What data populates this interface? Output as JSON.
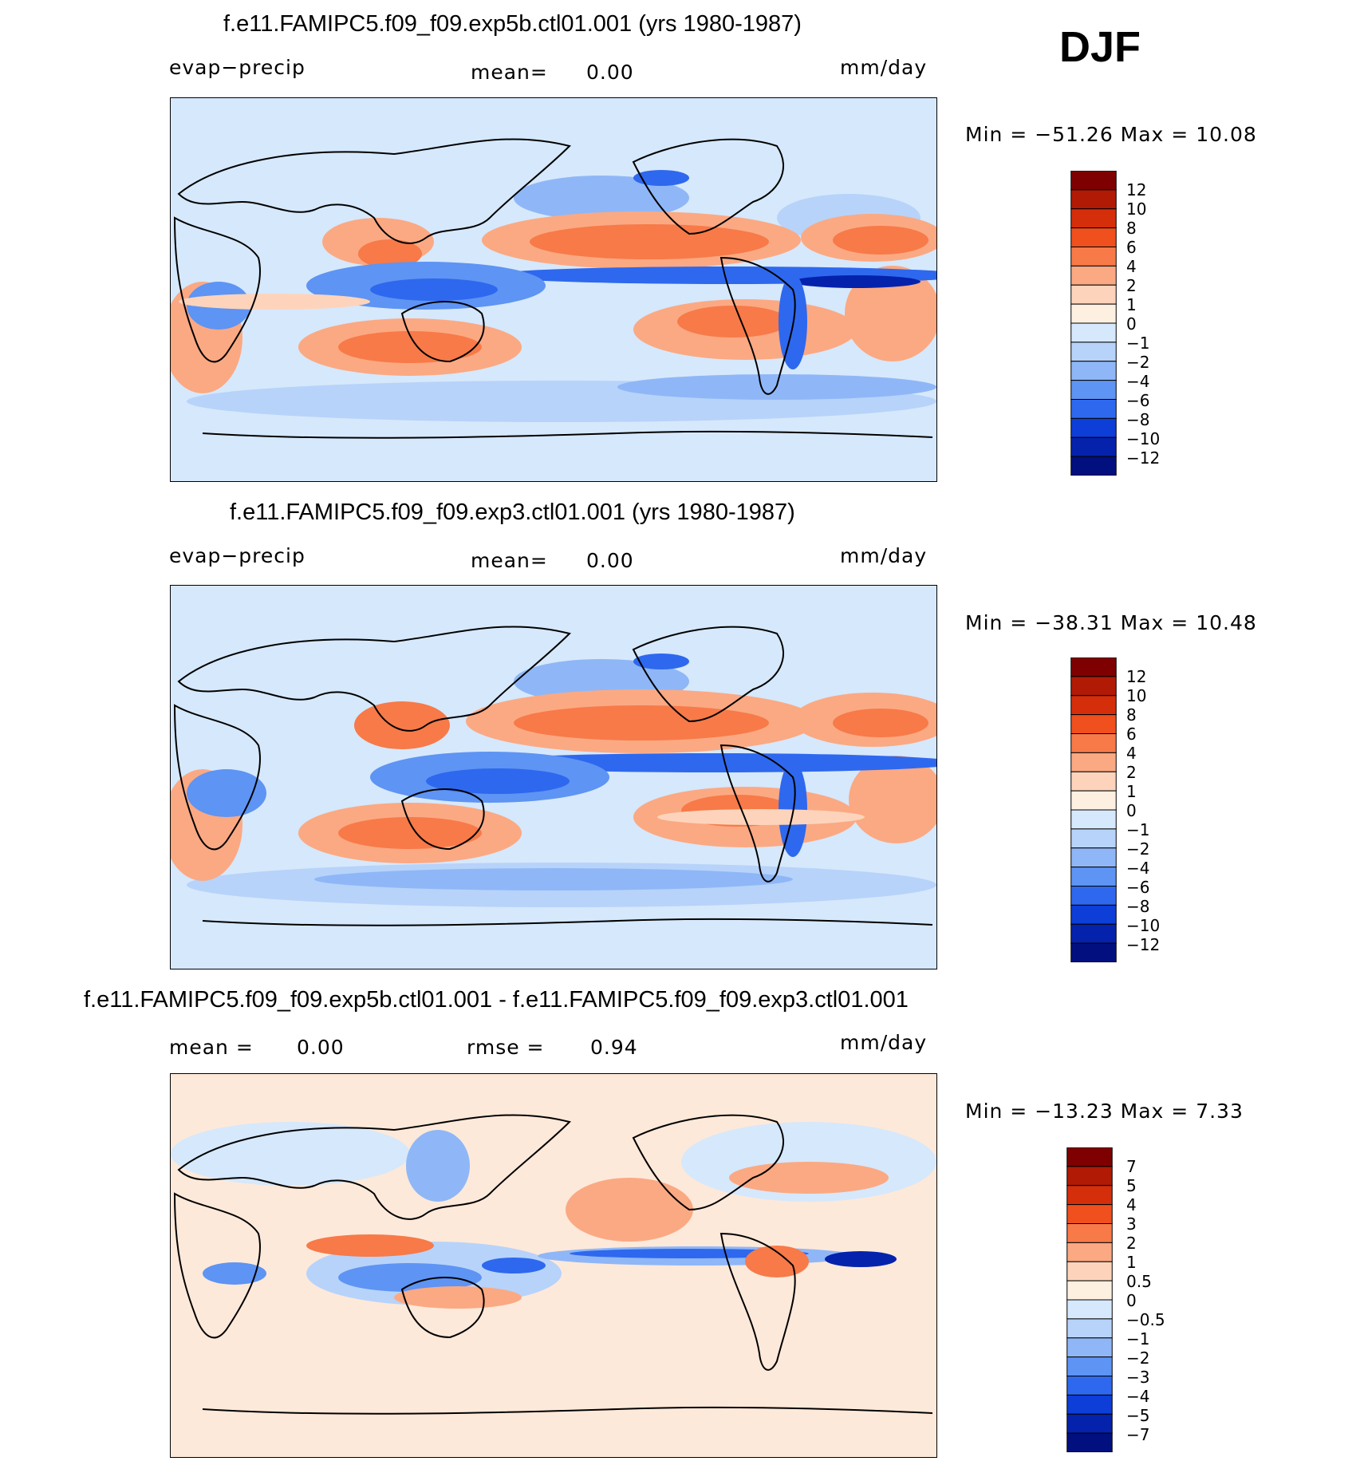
{
  "season": "DJF",
  "panels": [
    {
      "title": "f.e11.FAMIPC5.f09_f09.exp5b.ctl01.001 (yrs 1980-1987)",
      "left_label": "evap−precip",
      "center_label": "mean=",
      "center_value": "0.00",
      "units": "mm/day",
      "minmax": "Min  =  −51.26  Max  =    10.08",
      "colorbar_ticks": [
        "12",
        "10",
        "8",
        "6",
        "4",
        "2",
        "1",
        "0",
        "−1",
        "−2",
        "−4",
        "−6",
        "−8",
        "−10",
        "−12"
      ]
    },
    {
      "title": "f.e11.FAMIPC5.f09_f09.exp3.ctl01.001 (yrs 1980-1987)",
      "left_label": "evap−precip",
      "center_label": "mean=",
      "center_value": "0.00",
      "units": "mm/day",
      "minmax": "Min  =  −38.31  Max  =    10.48",
      "colorbar_ticks": [
        "12",
        "10",
        "8",
        "6",
        "4",
        "2",
        "1",
        "0",
        "−1",
        "−2",
        "−4",
        "−6",
        "−8",
        "−10",
        "−12"
      ]
    },
    {
      "title": "f.e11.FAMIPC5.f09_f09.exp5b.ctl01.001 - f.e11.FAMIPC5.f09_f09.exp3.ctl01.001",
      "left_label": "mean  =",
      "left_value": "0.00",
      "center_label": "rmse  =",
      "center_value": "0.94",
      "units": "mm/day",
      "minmax": "Min  =  −13.23  Max  =     7.33",
      "colorbar_ticks": [
        "7",
        "5",
        "4",
        "3",
        "2",
        "1",
        "0.5",
        "0",
        "−0.5",
        "−1",
        "−2",
        "−3",
        "−4",
        "−5",
        "−7"
      ]
    }
  ],
  "colors": {
    "scale": [
      "#7f0000",
      "#b11a05",
      "#d52e0b",
      "#f04f1e",
      "#f77a48",
      "#fba983",
      "#fdd4bb",
      "#fef0e1",
      "#d6e8fb",
      "#b7d3fa",
      "#8fb7f7",
      "#5e94f3",
      "#2e68ee",
      "#0d3ed8",
      "#0422ac",
      "#01107e"
    ],
    "land": "#d6e8fb",
    "diff_background": "#fde9da"
  }
}
